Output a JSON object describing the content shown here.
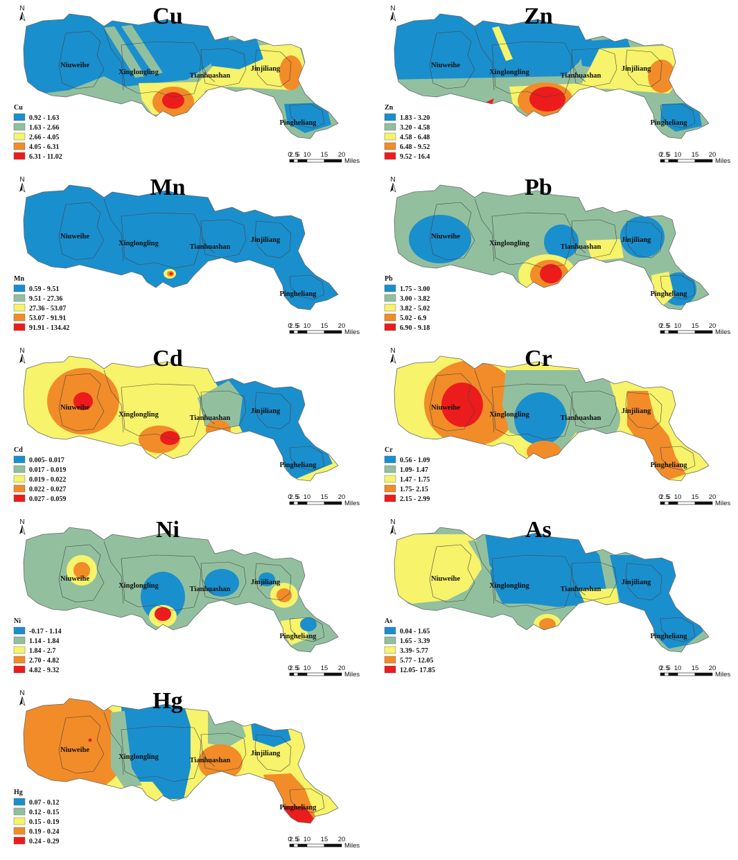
{
  "place_names": [
    "Niuweihe",
    "Xinglongling",
    "Tianhuashan",
    "Jinjiliang",
    "Pingheliang"
  ],
  "north_label": "N",
  "scale_bar": {
    "ticks": [
      "0",
      "2.5",
      "5",
      "10",
      "15",
      "20"
    ],
    "unit": "Miles"
  },
  "class_colors": [
    "#1a8fce",
    "#92c09e",
    "#f7f36a",
    "#f28c28",
    "#ec1c1c"
  ],
  "panels": [
    {
      "element": "Cu",
      "legend_title": "Cu",
      "place_names": [
        "Niuweihe",
        "Xinglongling",
        "Tianhuashan",
        "Jinjiliang",
        "Pingheliang"
      ],
      "classes": [
        "0.92 - 1.63",
        "1.63 - 2.66",
        "2.66 - 4.05",
        "4.05 - 6.31",
        "6.31 - 11.02"
      ]
    },
    {
      "element": "Zn",
      "legend_title": "Zn",
      "place_names": [
        "Niuweihe",
        "Xinglongling",
        "Tianhuashan",
        "Jinjiliang",
        "Pingheliang"
      ],
      "classes": [
        "1.83 - 3.20",
        "3.20 - 4.58",
        "4.58 - 6.48",
        "6.48 - 9.52",
        "9.52 - 16.4"
      ]
    },
    {
      "element": "Mn",
      "legend_title": "Mn",
      "place_names": [
        "Niuweihe",
        "Xinglongling",
        "Tianhuashan",
        "Jinjiliang",
        "Pingheliang"
      ],
      "classes": [
        "0.59 - 9.51",
        "9.51 - 27.36",
        "27.36 - 53.07",
        "53.07 - 91.91",
        "91.91 - 134.42"
      ]
    },
    {
      "element": "Pb",
      "legend_title": "Pb",
      "place_names": [
        "Niuweihe",
        "Xinglongling",
        "Tianhuashan",
        "Jinjiliang",
        "Pingheliang"
      ],
      "classes": [
        "1.75 - 3.00",
        "3.00 - 3.82",
        "3.82 - 5.02",
        "5.02 - 6.9",
        "6.90 - 9.18"
      ]
    },
    {
      "element": "Cd",
      "legend_title": "Cd",
      "place_names": [
        "Niuweihe",
        "Xinglongling",
        "Tianhuashan",
        "Jinjiliang",
        "Pingheliang"
      ],
      "classes": [
        "0.005- 0.017",
        "0.017 - 0.019",
        "0.019 - 0.022",
        "0.022 - 0.027",
        "0.027 - 0.059"
      ]
    },
    {
      "element": "Cr",
      "legend_title": "Cr",
      "place_names": [
        "Niuweihe",
        "Xinglongling",
        "Tianhuashan",
        "Jinjiliang",
        "Pingheliang"
      ],
      "classes": [
        "0.56 - 1.09",
        "1.09- 1.47",
        "1.47 - 1.75",
        "1.75- 2.15",
        "2.15 - 2.99"
      ]
    },
    {
      "element": "Ni",
      "legend_title": "Ni",
      "place_names": [
        "Niuweihe",
        "Xinglongling",
        "Tianhuashan",
        "Jinjiliang",
        "Pingheliang"
      ],
      "classes": [
        "-0.17 - 1.14",
        "1.14 - 1.84",
        "1.84 - 2.7",
        "2.70 - 4.82",
        "4.82 - 9.32"
      ]
    },
    {
      "element": "As",
      "legend_title": "As",
      "place_names": [
        "Niuweihe",
        "Xinglongling",
        "Tianhuashan",
        "Jinjiliang",
        "Pingheliang"
      ],
      "classes": [
        "0.04 - 1.65",
        "1.65 - 3.39",
        "3.39- 5.77",
        "5.77 - 12.05",
        "12.05- 17.85"
      ]
    },
    {
      "element": "Hg",
      "legend_title": "Hg",
      "place_names": [
        "Niuweihe",
        "Xinglongling",
        "Tianhuashan",
        "Jinjiliang",
        "Pingheliang"
      ],
      "classes": [
        "0.07 - 0.12",
        "0.12 - 0.15",
        "0.15 - 0.19",
        "0.19 - 0.24",
        "0.24 - 0.29"
      ]
    }
  ]
}
